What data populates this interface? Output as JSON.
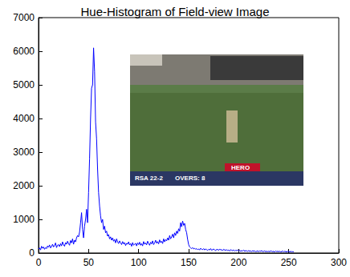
{
  "chart_data": {
    "type": "line",
    "title": "Hue-Histogram of Field-view Image",
    "x": [
      0,
      1,
      2,
      3,
      4,
      5,
      6,
      7,
      8,
      9,
      10,
      11,
      12,
      13,
      14,
      15,
      16,
      17,
      18,
      19,
      20,
      21,
      22,
      23,
      24,
      25,
      26,
      27,
      28,
      29,
      30,
      31,
      32,
      33,
      34,
      35,
      36,
      37,
      38,
      39,
      40,
      41,
      42,
      43,
      44,
      45,
      46,
      47,
      48,
      49,
      50,
      51,
      52,
      53,
      54,
      55,
      56,
      57,
      58,
      59,
      60,
      61,
      62,
      63,
      64,
      65,
      66,
      67,
      68,
      69,
      70,
      71,
      72,
      73,
      74,
      75,
      76,
      77,
      78,
      79,
      80,
      81,
      82,
      83,
      84,
      85,
      86,
      87,
      88,
      89,
      90,
      91,
      92,
      93,
      94,
      95,
      96,
      97,
      98,
      99,
      100,
      101,
      102,
      103,
      104,
      105,
      106,
      107,
      108,
      109,
      110,
      111,
      112,
      113,
      114,
      115,
      116,
      117,
      118,
      119,
      120,
      121,
      122,
      123,
      124,
      125,
      126,
      127,
      128,
      129,
      130,
      131,
      132,
      133,
      134,
      135,
      136,
      137,
      138,
      139,
      140,
      141,
      142,
      143,
      144,
      145,
      146,
      147,
      148,
      149,
      150,
      151,
      152,
      153,
      154,
      155,
      156,
      157,
      158,
      159,
      160,
      161,
      162,
      163,
      164,
      165,
      166,
      167,
      168,
      169,
      170,
      171,
      172,
      173,
      174,
      175,
      176,
      177,
      178,
      179,
      180,
      181,
      182,
      183,
      184,
      185,
      186,
      187,
      188,
      189,
      190,
      191,
      192,
      193,
      194,
      195,
      196,
      197,
      198,
      199,
      200,
      201,
      202,
      203,
      204,
      205,
      206,
      207,
      208,
      209,
      210,
      211,
      212,
      213,
      214,
      215,
      216,
      217,
      218,
      219,
      220,
      221,
      222,
      223,
      224,
      225,
      226,
      227,
      228,
      229,
      230,
      231,
      232,
      233,
      234,
      235,
      236,
      237,
      238,
      239,
      240,
      241,
      242,
      243,
      244,
      245,
      246,
      247,
      248,
      249,
      250,
      251,
      252,
      253,
      254,
      255
    ],
    "values": [
      120,
      150,
      90,
      200,
      140,
      180,
      110,
      160,
      130,
      210,
      170,
      240,
      150,
      190,
      260,
      180,
      220,
      300,
      160,
      230,
      250,
      190,
      280,
      210,
      330,
      240,
      200,
      310,
      260,
      350,
      280,
      230,
      370,
      300,
      420,
      260,
      380,
      330,
      450,
      520,
      480,
      620,
      900,
      1200,
      700,
      450,
      800,
      1000,
      1300,
      900,
      1800,
      2800,
      4000,
      4900,
      5000,
      6100,
      5400,
      3900,
      3400,
      2500,
      1800,
      1400,
      1100,
      900,
      1000,
      700,
      800,
      600,
      650,
      500,
      550,
      420,
      480,
      380,
      450,
      350,
      400,
      300,
      420,
      330,
      280,
      360,
      300,
      250,
      340,
      270,
      310,
      220,
      290,
      260,
      330,
      240,
      280,
      200,
      310,
      230,
      260,
      290,
      210,
      300,
      250,
      320,
      230,
      280,
      210,
      340,
      260,
      300,
      240,
      350,
      280,
      230,
      320,
      270,
      360,
      250,
      300,
      380,
      290,
      340,
      270,
      390,
      310,
      350,
      280,
      420,
      330,
      400,
      360,
      450,
      380,
      520,
      420,
      480,
      560,
      450,
      600,
      520,
      650,
      580,
      720,
      650,
      900,
      780,
      950,
      820,
      880,
      700,
      600,
      400,
      250,
      180,
      150,
      130,
      160,
      120,
      140,
      110,
      130,
      100,
      120,
      90,
      140,
      110,
      100,
      130,
      90,
      120,
      100,
      80,
      110,
      90,
      130,
      80,
      100,
      120,
      90,
      70,
      110,
      100,
      80,
      120,
      90,
      100,
      70,
      110,
      90,
      80,
      100,
      70,
      90,
      60,
      100,
      80,
      70,
      90,
      60,
      80,
      70,
      90,
      60,
      80,
      50,
      70,
      60,
      90,
      50,
      70,
      60,
      50,
      70,
      50,
      60,
      40,
      70,
      50,
      60,
      40,
      50,
      60,
      40,
      60,
      50,
      70,
      40,
      50,
      60,
      40,
      50,
      40,
      50,
      40,
      60,
      50,
      40,
      50,
      30,
      60,
      40,
      50,
      40,
      50,
      30,
      40,
      60,
      30,
      50,
      40,
      30,
      50,
      40,
      30,
      50,
      30,
      40,
      30
    ],
    "color": "#0000ff",
    "xlim": [
      0,
      300
    ],
    "xticks": [
      0,
      50,
      100,
      150,
      200,
      250,
      300
    ],
    "ylim": [
      0,
      7000
    ],
    "yticks": [
      0,
      1000,
      2000,
      3000,
      4000,
      5000,
      6000,
      7000
    ],
    "grid": false,
    "annotations": [
      "RSA 22-2",
      "OVERS: 8",
      "HERO"
    ]
  }
}
